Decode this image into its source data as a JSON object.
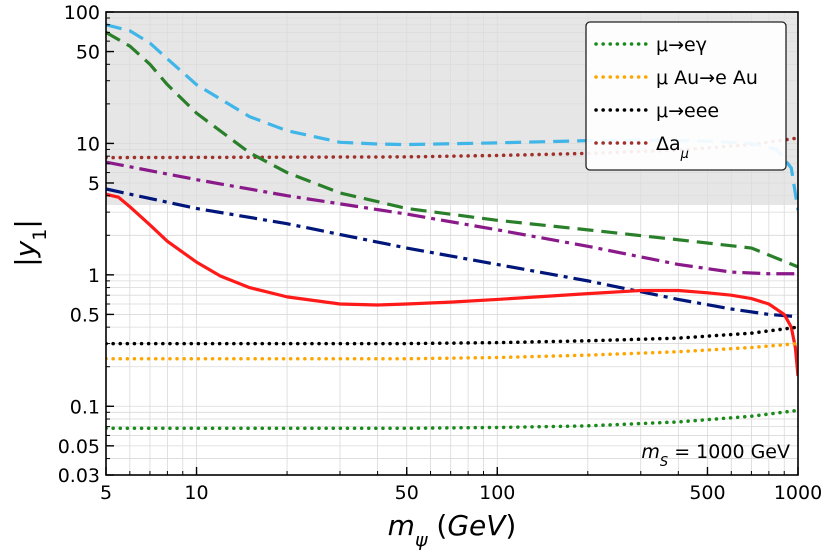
{
  "chart_data": {
    "type": "line",
    "xscale": "log",
    "yscale": "log",
    "xlim": [
      5,
      1000
    ],
    "ylim": [
      0.03,
      100
    ],
    "xlabel": "m_ψ (GeV)",
    "ylabel": "|y_1|",
    "x_ticks": [
      5,
      10,
      50,
      100,
      500,
      1000
    ],
    "x_tick_labels": [
      "5",
      "10",
      "50",
      "100",
      "500",
      "1000"
    ],
    "y_ticks": [
      0.03,
      0.05,
      0.1,
      0.5,
      1,
      5,
      10,
      50,
      100
    ],
    "y_tick_labels": [
      "0.03",
      "0.05",
      "0.1",
      "0.5",
      "1",
      "5",
      "10",
      "50",
      "100"
    ],
    "grid": true,
    "annotation": "m_S = 1000 GeV",
    "excluded_region": {
      "y_min": 3.4,
      "y_max": 100,
      "color": "#dcdcdc"
    },
    "legend": [
      {
        "label": "μ→eγ",
        "color": "#1a8a1a",
        "style": "dotted"
      },
      {
        "label": "μ Au→e Au",
        "color": "#ffa500",
        "style": "dotted"
      },
      {
        "label": "μ→eee",
        "color": "#000000",
        "style": "dotted"
      },
      {
        "label": "Δa_μ",
        "color": "#a0302a",
        "style": "dotted"
      }
    ],
    "series": [
      {
        "name": "μ→eγ (dashed)",
        "color": "#2a7f2a",
        "style": "dashed",
        "x": [
          5,
          6,
          7,
          8,
          10,
          15,
          20,
          30,
          50,
          100,
          200,
          400,
          700,
          1000
        ],
        "y": [
          70,
          55,
          40,
          28,
          17,
          8.5,
          6,
          4.2,
          3.2,
          2.6,
          2.2,
          1.85,
          1.6,
          1.15
        ]
      },
      {
        "name": "cyan dashed",
        "color": "#3fb5e8",
        "style": "dashed",
        "x": [
          5,
          6,
          7,
          8,
          10,
          15,
          20,
          30,
          40,
          50,
          100,
          200,
          300,
          500,
          700,
          850,
          950,
          1000
        ],
        "y": [
          80,
          72,
          58,
          44,
          28,
          16,
          12.5,
          10.2,
          9.9,
          9.8,
          10.1,
          10.5,
          10.6,
          10.4,
          10,
          9,
          6.5,
          3.1
        ]
      },
      {
        "name": "purple dash-dot",
        "color": "#8a1a8a",
        "style": "dashdot",
        "x": [
          5,
          10,
          20,
          50,
          100,
          200,
          400,
          600,
          800,
          1000
        ],
        "y": [
          7.2,
          5.3,
          4,
          2.9,
          2.2,
          1.65,
          1.2,
          1.05,
          1.02,
          1.02
        ]
      },
      {
        "name": "navy dash-dot",
        "color": "#00167a",
        "style": "dashdot",
        "x": [
          5,
          10,
          20,
          50,
          100,
          200,
          400,
          600,
          800,
          1000
        ],
        "y": [
          4.5,
          3.2,
          2.45,
          1.6,
          1.2,
          0.9,
          0.65,
          0.55,
          0.5,
          0.48
        ]
      },
      {
        "name": "red solid",
        "color": "#ff1a1a",
        "style": "solid",
        "x": [
          5,
          5.5,
          6,
          7,
          8,
          10,
          12,
          15,
          20,
          30,
          40,
          50,
          70,
          100,
          200,
          300,
          400,
          500,
          600,
          700,
          800,
          900,
          950,
          980,
          1000
        ],
        "y": [
          4.1,
          3.9,
          3.3,
          2.4,
          1.8,
          1.25,
          0.98,
          0.8,
          0.68,
          0.6,
          0.59,
          0.6,
          0.62,
          0.65,
          0.72,
          0.76,
          0.76,
          0.73,
          0.7,
          0.66,
          0.6,
          0.5,
          0.4,
          0.28,
          0.17
        ]
      },
      {
        "name": "μ→eee",
        "color": "#000000",
        "style": "dotted",
        "x": [
          5,
          50,
          100,
          200,
          400,
          700,
          1000
        ],
        "y": [
          0.3,
          0.3,
          0.305,
          0.315,
          0.33,
          0.36,
          0.4
        ]
      },
      {
        "name": "μ Au→e Au",
        "color": "#ffa500",
        "style": "dotted",
        "x": [
          5,
          50,
          100,
          200,
          400,
          700,
          1000
        ],
        "y": [
          0.23,
          0.23,
          0.235,
          0.245,
          0.26,
          0.28,
          0.3
        ]
      },
      {
        "name": "μ→eγ (dotted)",
        "color": "#1a8a1a",
        "style": "dotted",
        "x": [
          5,
          50,
          100,
          200,
          400,
          700,
          1000
        ],
        "y": [
          0.068,
          0.068,
          0.069,
          0.071,
          0.076,
          0.084,
          0.093
        ]
      },
      {
        "name": "Δa_μ",
        "color": "#a0302a",
        "style": "dotted",
        "x": [
          5,
          50,
          100,
          200,
          400,
          700,
          1000
        ],
        "y": [
          7.8,
          7.9,
          8.1,
          8.4,
          8.9,
          9.8,
          11
        ]
      }
    ]
  }
}
